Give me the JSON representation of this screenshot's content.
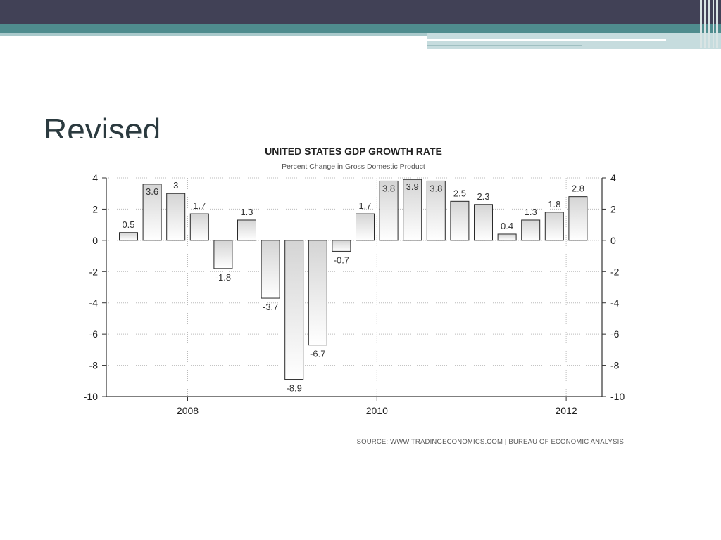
{
  "slide": {
    "title": "Revised"
  },
  "chart_data": {
    "type": "bar",
    "title": "UNITED STATES GDP GROWTH RATE",
    "subtitle": "Percent Change in Gross Domestic Product",
    "source": "SOURCE: WWW.TRADINGECONOMICS.COM | BUREAU OF ECONOMIC ANALYSIS",
    "values": [
      0.5,
      3.6,
      3,
      1.7,
      -1.8,
      1.3,
      -3.7,
      -8.9,
      -6.7,
      -0.7,
      1.7,
      3.8,
      3.9,
      3.8,
      2.5,
      2.3,
      0.4,
      1.3,
      1.8,
      2.8
    ],
    "value_labels": [
      "0.5",
      "3.6",
      "3",
      "1.7",
      "-1.8",
      "1.3",
      "-3.7",
      "-8.9",
      "-6.7",
      "-0.7",
      "1.7",
      "3.8",
      "3.9",
      "3.8",
      "2.5",
      "2.3",
      "0.4",
      "1.3",
      "1.8",
      "2.8"
    ],
    "x_ticks": [
      {
        "label": "2008",
        "after_bar": 3
      },
      {
        "label": "2010",
        "after_bar": 11
      },
      {
        "label": "2012",
        "after_bar": 19
      }
    ],
    "y_ticks": [
      4,
      2,
      0,
      -2,
      -4,
      -6,
      -8,
      -10
    ],
    "ylim": [
      -10,
      4
    ],
    "grid": true,
    "y_axis_sides": [
      "left",
      "right"
    ],
    "colors": {
      "bar_fill_top": "#d4d4d4",
      "bar_fill_bottom": "#ffffff",
      "bar_stroke": "#2a2a2a",
      "axis": "#333333",
      "grid": "#bbbbbb"
    }
  }
}
